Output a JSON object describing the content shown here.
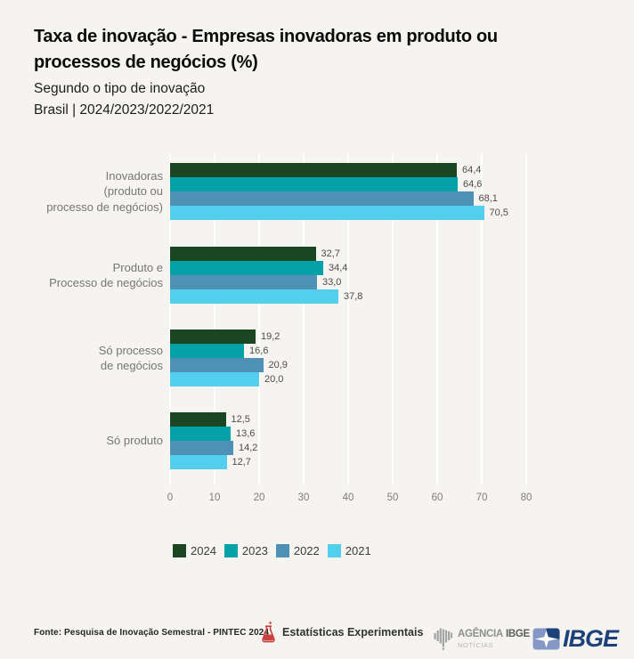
{
  "header": {
    "title_line1": "Taxa de inovação - Empresas inovadoras em produto ou",
    "title_line2": "processos de negócios (%)",
    "subtitle": "Segundo o tipo de inovação",
    "scope": "Brasil | 2024/2023/2022/2021"
  },
  "chart_data": {
    "type": "bar",
    "orientation": "horizontal",
    "title": "Taxa de inovação - Empresas inovadoras em produto ou processos de negócios (%)",
    "subtitle": "Segundo o tipo de inovação",
    "region_period": "Brasil | 2024/2023/2022/2021",
    "categories": [
      "Inovadoras (produto ou processo de negócios)",
      "Produto e Processo de negócios",
      "Só processo de negócios",
      "Só produto"
    ],
    "category_label_lines": [
      [
        "Inovadoras",
        "(produto ou",
        "processo de negócios)"
      ],
      [
        "Produto e",
        "Processo de negócios"
      ],
      [
        "Só processo",
        "de negócios"
      ],
      [
        "Só produto"
      ]
    ],
    "series": [
      {
        "name": "2024",
        "color": "#1a4721",
        "values": [
          64.4,
          32.7,
          19.2,
          12.5
        ]
      },
      {
        "name": "2023",
        "color": "#04a2a6",
        "values": [
          64.6,
          34.4,
          16.6,
          13.6
        ]
      },
      {
        "name": "2022",
        "color": "#4f90b5",
        "values": [
          68.1,
          33.0,
          20.9,
          14.2
        ]
      },
      {
        "name": "2021",
        "color": "#53cfed",
        "values": [
          70.5,
          37.8,
          20.0,
          12.7
        ]
      }
    ],
    "value_labels": [
      [
        "64,4",
        "64,6",
        "68,1",
        "70,5"
      ],
      [
        "32,7",
        "34,4",
        "33,0",
        "37,8"
      ],
      [
        "19,2",
        "16,6",
        "20,9",
        "20,0"
      ],
      [
        "12,5",
        "13,6",
        "14,2",
        "12,7"
      ]
    ],
    "xticks": [
      0,
      10,
      20,
      30,
      40,
      50,
      60,
      70,
      80
    ],
    "xlim": [
      0,
      80
    ],
    "xlabel": "",
    "ylabel": "",
    "grid": "vertical-white-gridlines",
    "legend_position": "bottom",
    "decimal_separator": ","
  },
  "footer": {
    "source": "Fonte: Pesquisa de Inovação Semestral - PINTEC 2024",
    "experimental_label": "Estatísticas Experimentais",
    "experimental_icon_color": "#c8403f",
    "agencia": {
      "name_part1": "AGÊNCIA",
      "name_part2": "IBGE",
      "subtitle": "NOTÍCIAS",
      "icon_color": "#a3a3a3"
    },
    "ibge": {
      "text": "IBGE",
      "navy": "#1d4179",
      "light_blue": "#8497c6"
    }
  },
  "page": {
    "background": "#f6f4f1"
  }
}
